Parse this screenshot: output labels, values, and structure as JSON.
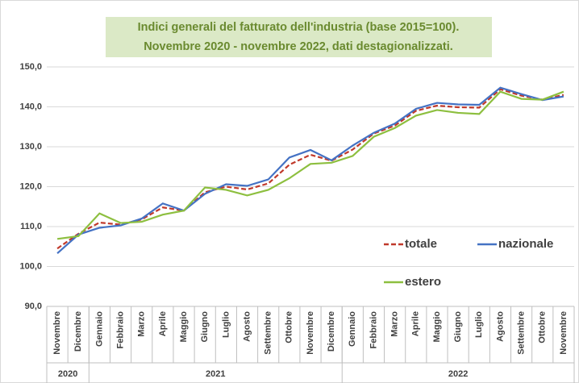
{
  "chart_data": {
    "type": "line",
    "title_lines": [
      "Indici generali del fatturato dell'industria (base 2015=100).",
      "Novembre 2020 - novembre 2022, dati destagionalizzati."
    ],
    "categories": [
      "Novembre",
      "Dicembre",
      "Gennaio",
      "Febbraio",
      "Marzo",
      "Aprile",
      "Maggio",
      "Giugno",
      "Luglio",
      "Agosto",
      "Settembre",
      "Ottobre",
      "Novembre",
      "Dicembre",
      "Gennaio",
      "Febbraio",
      "Marzo",
      "Aprile",
      "Maggio",
      "Giugno",
      "Luglio",
      "Agosto",
      "Settembre",
      "Ottobre",
      "Novembre"
    ],
    "groups": [
      {
        "label": "2020",
        "count": 2
      },
      {
        "label": "2021",
        "count": 12
      },
      {
        "label": "2022",
        "count": 11
      }
    ],
    "series": [
      {
        "name": "totale",
        "color": "#c0392b",
        "dashed": true,
        "values": [
          104.5,
          108.2,
          111.0,
          110.5,
          111.8,
          114.8,
          114.0,
          118.6,
          120.0,
          119.3,
          120.8,
          125.5,
          128.0,
          126.5,
          129.3,
          133.3,
          135.3,
          139.0,
          140.3,
          139.9,
          139.8,
          144.4,
          142.8,
          141.8,
          143.0
        ]
      },
      {
        "name": "nazionale",
        "color": "#4472c4",
        "dashed": false,
        "values": [
          103.3,
          108.0,
          109.7,
          110.3,
          112.0,
          115.8,
          114.0,
          118.2,
          120.6,
          120.2,
          121.8,
          127.3,
          129.2,
          126.6,
          130.3,
          133.5,
          135.8,
          139.5,
          141.0,
          140.6,
          140.5,
          144.8,
          143.2,
          141.7,
          142.6
        ]
      },
      {
        "name": "estero",
        "color": "#8dbf3f",
        "dashed": false,
        "values": [
          106.9,
          107.6,
          113.3,
          110.9,
          111.2,
          113.0,
          114.0,
          119.8,
          119.2,
          117.8,
          119.2,
          122.1,
          125.7,
          126.0,
          127.7,
          132.5,
          134.7,
          137.8,
          139.2,
          138.5,
          138.2,
          143.8,
          142.0,
          141.8,
          143.8
        ]
      }
    ],
    "ylim": [
      90,
      150
    ],
    "yticks": [
      {
        "value": 90,
        "label": "90,0"
      },
      {
        "value": 100,
        "label": "100,0"
      },
      {
        "value": 110,
        "label": "110,0"
      },
      {
        "value": 120,
        "label": "120,0"
      },
      {
        "value": 130,
        "label": "130,0"
      },
      {
        "value": 140,
        "label": "140,0"
      },
      {
        "value": 150,
        "label": "150,0"
      }
    ],
    "grid": true
  }
}
